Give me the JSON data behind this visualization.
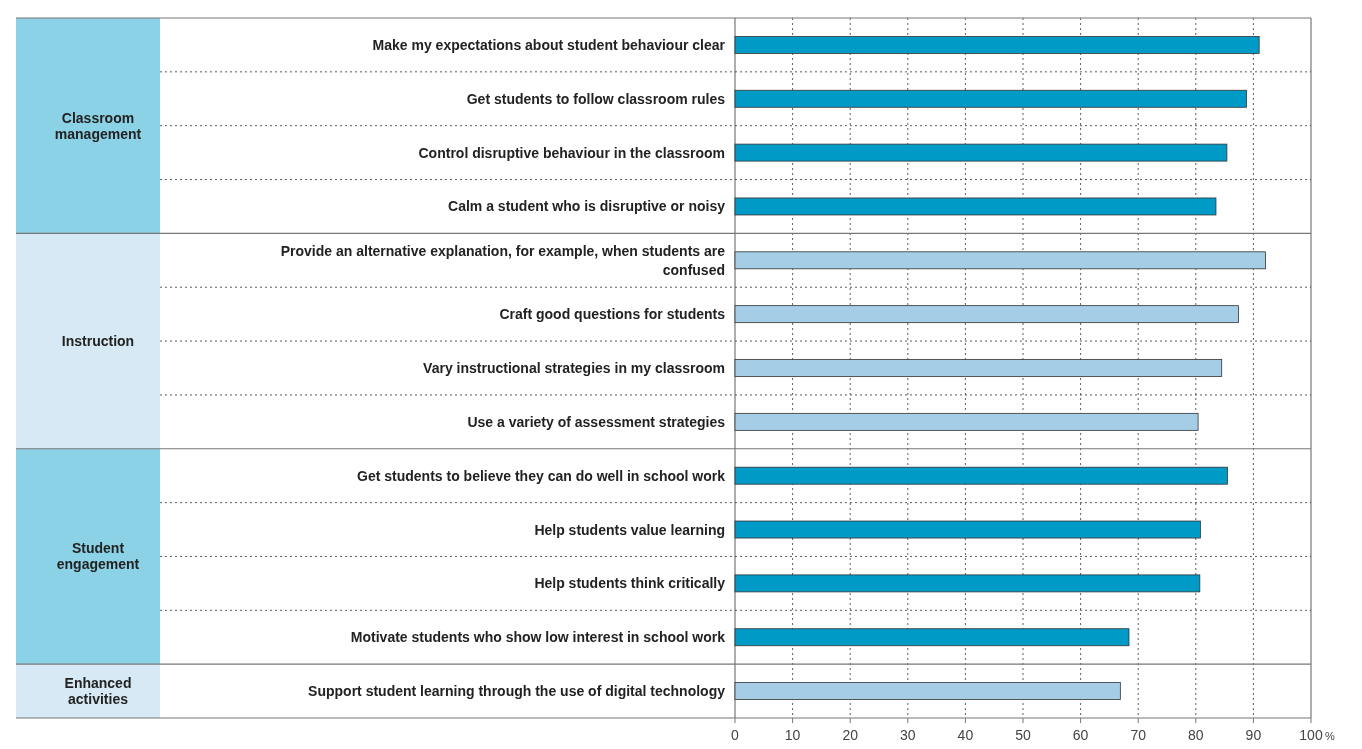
{
  "chart_data": {
    "type": "bar",
    "orientation": "horizontal",
    "xlabel": "%",
    "grid": "x",
    "xlim": [
      0,
      100
    ],
    "xticks": [
      0,
      10,
      20,
      30,
      40,
      50,
      60,
      70,
      80,
      90,
      100
    ],
    "categories": [
      "Make my expectations about student behaviour clear",
      "Get students to follow classroom rules",
      "Control disruptive behaviour in the classroom",
      "Calm a student who is disruptive or noisy",
      "Provide an alternative explanation, for example, when students are confused",
      "Craft good questions for students",
      "Vary instructional strategies in my classroom",
      "Use a variety of assessment strategies",
      "Get students to believe they can do well in school work",
      "Help students value learning",
      "Help students think critically",
      "Motivate students who show low interest in school work",
      "Support student learning through the use of digital technology"
    ],
    "values": [
      91.0,
      88.8,
      85.4,
      83.5,
      92.1,
      87.4,
      84.5,
      80.4,
      85.5,
      80.8,
      80.7,
      68.4,
      66.9
    ],
    "colors": [
      "#009ac7",
      "#009ac7",
      "#009ac7",
      "#009ac7",
      "#a6cde6",
      "#a6cde6",
      "#a6cde6",
      "#a6cde6",
      "#009ac7",
      "#009ac7",
      "#009ac7",
      "#009ac7",
      "#a6cde6"
    ],
    "annotations": [
      "Classroom management",
      "Instruction",
      "Student engagement",
      "Enhanced activities"
    ]
  }
}
